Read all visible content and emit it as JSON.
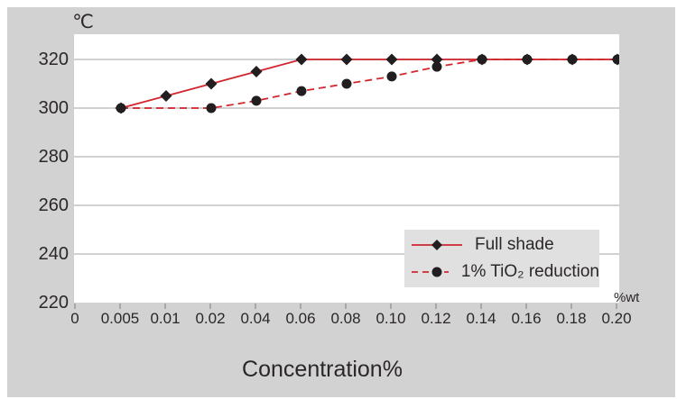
{
  "figure": {
    "y_axis_unit": "℃",
    "x_axis_unit": "%wt",
    "x_axis_title": "Concentration%"
  },
  "colors": {
    "panel_bg": "#d2d2d2",
    "plot_bg": "#ffffff",
    "gridline": "#cfd1d3",
    "tick_mark": "#a6a8ab",
    "line_red": "#d1262e",
    "marker_black": "#221e1f",
    "legend_bg": "#e0e0e0",
    "text": "#2b2728"
  },
  "chart_data": {
    "type": "line",
    "title": "",
    "xlabel": "Concentration%",
    "ylabel": "",
    "y_unit_label": "℃",
    "x_unit_label": "%wt",
    "categories": [
      "0",
      "0.005",
      "0.01",
      "0.02",
      "0.04",
      "0.06",
      "0.08",
      "0.10",
      "0.12",
      "0.14",
      "0.16",
      "0.18",
      "0.20"
    ],
    "yticks": [
      220,
      240,
      260,
      280,
      300,
      320
    ],
    "ylim": [
      220,
      330
    ],
    "grid": "horizontal-only",
    "legend_position": "inside-bottom-right",
    "series": [
      {
        "name": "Full shade",
        "marker": "diamond",
        "line_style": "solid",
        "points": [
          [
            "0.005",
            300
          ],
          [
            "0.01",
            305
          ],
          [
            "0.02",
            310
          ],
          [
            "0.04",
            315
          ],
          [
            "0.06",
            320
          ],
          [
            "0.08",
            320
          ],
          [
            "0.10",
            320
          ],
          [
            "0.12",
            320
          ],
          [
            "0.14",
            320
          ],
          [
            "0.16",
            320
          ],
          [
            "0.18",
            320
          ],
          [
            "0.20",
            320
          ]
        ]
      },
      {
        "name": "1% TiO₂ reduction",
        "marker": "circle",
        "line_style": "dashed",
        "points": [
          [
            "0.005",
            300
          ],
          [
            "0.02",
            300
          ],
          [
            "0.04",
            303
          ],
          [
            "0.06",
            307
          ],
          [
            "0.08",
            310
          ],
          [
            "0.10",
            313
          ],
          [
            "0.12",
            317
          ],
          [
            "0.14",
            320
          ],
          [
            "0.16",
            320
          ],
          [
            "0.18",
            320
          ],
          [
            "0.20",
            320
          ]
        ]
      }
    ]
  }
}
